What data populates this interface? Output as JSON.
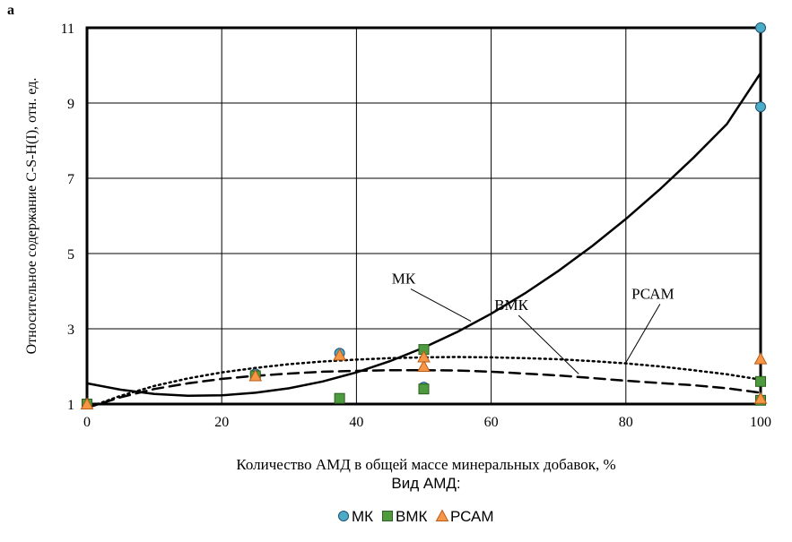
{
  "panel_label": "a",
  "chart_data": {
    "type": "scatter",
    "xlabel": "Количество АМД в общей массе минеральных добавок, %",
    "ylabel": "Относительное содержание C-S-H(I), отн. ед.",
    "legend_title": "Вид АМД:",
    "legend_position": "bottom",
    "xlim": [
      0,
      100
    ],
    "ylim": [
      1,
      11
    ],
    "x_ticks": [
      0,
      20,
      40,
      60,
      80,
      100
    ],
    "y_ticks": [
      1,
      3,
      5,
      7,
      9,
      11
    ],
    "grid": true,
    "series": [
      {
        "name": "МК",
        "marker": "circle",
        "color": "#4bacc6",
        "points": [
          [
            0,
            1.0
          ],
          [
            25,
            1.8
          ],
          [
            37.5,
            2.35
          ],
          [
            50,
            1.45
          ],
          [
            100,
            8.9
          ],
          [
            100,
            11.0
          ]
        ]
      },
      {
        "name": "ВМК",
        "marker": "square",
        "color": "#4e9a3e",
        "points": [
          [
            0,
            1.0
          ],
          [
            25,
            1.75
          ],
          [
            37.5,
            1.15
          ],
          [
            50,
            1.4
          ],
          [
            50,
            2.45
          ],
          [
            100,
            1.6
          ],
          [
            100,
            1.1
          ]
        ]
      },
      {
        "name": "РСАМ",
        "marker": "triangle",
        "color": "#f79646",
        "points": [
          [
            0,
            1.0
          ],
          [
            25,
            1.75
          ],
          [
            37.5,
            2.3
          ],
          [
            50,
            2.0
          ],
          [
            50,
            2.25
          ],
          [
            100,
            2.2
          ],
          [
            100,
            1.15
          ]
        ]
      }
    ],
    "trendlines": [
      {
        "label": "МК",
        "style": "solid",
        "points": [
          [
            0,
            1.55
          ],
          [
            5,
            1.38
          ],
          [
            10,
            1.27
          ],
          [
            15,
            1.22
          ],
          [
            20,
            1.23
          ],
          [
            25,
            1.3
          ],
          [
            30,
            1.42
          ],
          [
            35,
            1.6
          ],
          [
            40,
            1.84
          ],
          [
            45,
            2.14
          ],
          [
            50,
            2.5
          ],
          [
            55,
            2.92
          ],
          [
            60,
            3.4
          ],
          [
            65,
            3.94
          ],
          [
            70,
            4.54
          ],
          [
            75,
            5.2
          ],
          [
            80,
            5.92
          ],
          [
            85,
            6.7
          ],
          [
            90,
            7.54
          ],
          [
            95,
            8.44
          ],
          [
            100,
            9.8
          ]
        ]
      },
      {
        "label": "ВМК",
        "style": "dashed",
        "points": [
          [
            0,
            0.9
          ],
          [
            5,
            1.18
          ],
          [
            10,
            1.4
          ],
          [
            15,
            1.55
          ],
          [
            20,
            1.67
          ],
          [
            25,
            1.75
          ],
          [
            30,
            1.81
          ],
          [
            35,
            1.86
          ],
          [
            40,
            1.88
          ],
          [
            45,
            1.9
          ],
          [
            50,
            1.9
          ],
          [
            55,
            1.89
          ],
          [
            60,
            1.86
          ],
          [
            65,
            1.81
          ],
          [
            70,
            1.76
          ],
          [
            75,
            1.69
          ],
          [
            80,
            1.62
          ],
          [
            85,
            1.56
          ],
          [
            90,
            1.5
          ],
          [
            95,
            1.42
          ],
          [
            100,
            1.3
          ]
        ]
      },
      {
        "label": "РСАМ",
        "style": "dotted",
        "points": [
          [
            0,
            0.9
          ],
          [
            5,
            1.22
          ],
          [
            10,
            1.48
          ],
          [
            15,
            1.68
          ],
          [
            20,
            1.84
          ],
          [
            25,
            1.96
          ],
          [
            30,
            2.06
          ],
          [
            35,
            2.13
          ],
          [
            40,
            2.18
          ],
          [
            45,
            2.22
          ],
          [
            50,
            2.24
          ],
          [
            55,
            2.25
          ],
          [
            60,
            2.24
          ],
          [
            65,
            2.22
          ],
          [
            70,
            2.19
          ],
          [
            75,
            2.14
          ],
          [
            80,
            2.08
          ],
          [
            85,
            2.0
          ],
          [
            90,
            1.9
          ],
          [
            95,
            1.79
          ],
          [
            100,
            1.65
          ]
        ]
      }
    ],
    "annotations": [
      {
        "text": "МК",
        "x": 47,
        "y": 4.2,
        "line_to": [
          57,
          3.2
        ]
      },
      {
        "text": "ВМК",
        "x": 63,
        "y": 3.5,
        "line_to": [
          73,
          1.8
        ]
      },
      {
        "text": "РСАМ",
        "x": 84,
        "y": 3.8,
        "line_to": [
          80,
          2.1
        ]
      }
    ]
  }
}
